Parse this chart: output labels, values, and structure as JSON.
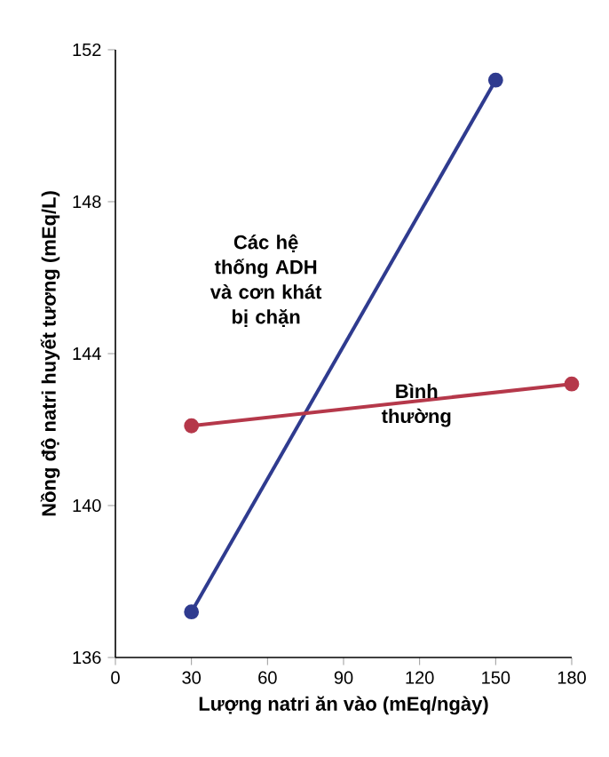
{
  "chart_data": {
    "type": "line",
    "xlabel": "Lượng natri ăn vào (mEq/ngày)",
    "ylabel": "Nồng độ natri huyết tương (mEq/L)",
    "xlim": [
      0,
      180
    ],
    "xticks": [
      0,
      30,
      60,
      90,
      120,
      150,
      180
    ],
    "ylim": [
      136,
      152
    ],
    "yticks": [
      136,
      140,
      144,
      148,
      152
    ],
    "marker": "circle",
    "grid": false,
    "legend": false,
    "series": [
      {
        "name": "Các hệ thống ADH và cơn khát bị chặn",
        "color": "#2f3b8f",
        "x": [
          30,
          150
        ],
        "values": [
          137.2,
          151.2
        ]
      },
      {
        "name": "Bình thường",
        "color": "#b5384a",
        "x": [
          30,
          180
        ],
        "values": [
          142.1,
          143.2
        ]
      }
    ]
  }
}
